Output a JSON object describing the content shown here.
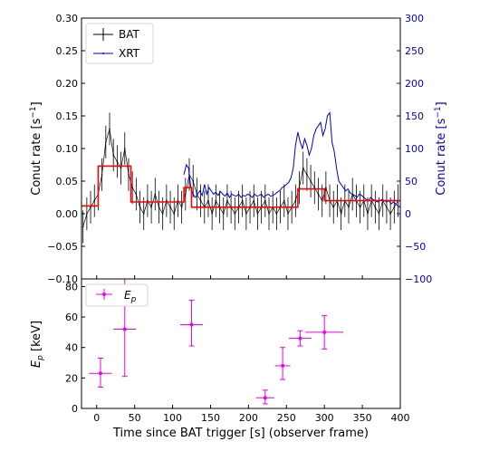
{
  "chart_data": [
    {
      "type": "line",
      "panel": "top",
      "xlabel": "",
      "ylabel_left": "Conut rate [s⁻¹]",
      "ylabel_right": "Conut rate [s⁻¹]",
      "right_axis_color": "#0000cc",
      "xlim": [
        -20,
        400
      ],
      "ylim_left": [
        -0.1,
        0.3
      ],
      "ylim_right": [
        -100,
        300
      ],
      "yticks_left": [
        "−0.10",
        "−0.05",
        "0.00",
        "0.05",
        "0.10",
        "0.15",
        "0.20",
        "0.25",
        "0.30"
      ],
      "yticks_right": [
        "−100",
        "−50",
        "0",
        "50",
        "100",
        "150",
        "200",
        "250",
        "300"
      ],
      "legend": {
        "placement": "top-left",
        "entries": [
          "BAT",
          "XRT"
        ]
      },
      "series": [
        {
          "name": "BAT",
          "color": "#000000",
          "style": "errorbar",
          "x": [
            -18,
            -13,
            -8,
            -3,
            2,
            7,
            12,
            17,
            22,
            27,
            32,
            37,
            42,
            47,
            52,
            57,
            62,
            67,
            72,
            77,
            82,
            87,
            92,
            97,
            102,
            107,
            112,
            117,
            122,
            127,
            132,
            137,
            142,
            147,
            152,
            157,
            162,
            167,
            172,
            177,
            182,
            187,
            192,
            197,
            202,
            207,
            212,
            217,
            222,
            227,
            232,
            237,
            242,
            247,
            252,
            257,
            262,
            267,
            272,
            277,
            282,
            287,
            292,
            297,
            302,
            307,
            312,
            317,
            322,
            327,
            332,
            337,
            342,
            347,
            352,
            357,
            362,
            367,
            372,
            377,
            382,
            387,
            392,
            397
          ],
          "y": [
            -0.02,
            0.0,
            0.01,
            0.02,
            0.03,
            0.06,
            0.11,
            0.13,
            0.09,
            0.08,
            0.07,
            0.1,
            0.06,
            0.04,
            0.03,
            0.01,
            0.0,
            0.02,
            0.01,
            0.03,
            0.01,
            0.0,
            0.02,
            0.01,
            0.0,
            0.02,
            0.01,
            0.03,
            0.06,
            0.05,
            0.03,
            0.02,
            0.01,
            0.02,
            0.0,
            0.02,
            0.01,
            0.0,
            0.02,
            0.01,
            0.0,
            0.01,
            0.02,
            0.0,
            0.01,
            0.02,
            0.0,
            0.01,
            0.02,
            0.0,
            0.01,
            0.0,
            0.01,
            0.02,
            0.0,
            0.01,
            0.02,
            0.04,
            0.07,
            0.06,
            0.05,
            0.04,
            0.03,
            0.02,
            0.04,
            0.02,
            0.01,
            0.02,
            0.0,
            0.02,
            0.01,
            0.03,
            0.02,
            0.01,
            0.02,
            0.0,
            0.02,
            0.01,
            0.0,
            0.02,
            0.01,
            0.0,
            0.01,
            0.02
          ],
          "yerr": 0.025
        },
        {
          "name": "XRT",
          "color": "#0000cc",
          "style": "line",
          "axis": "right",
          "x": [
            115,
            118,
            121,
            124,
            127,
            130,
            133,
            136,
            139,
            142,
            145,
            148,
            151,
            154,
            157,
            160,
            163,
            166,
            169,
            172,
            175,
            178,
            181,
            184,
            187,
            190,
            193,
            196,
            199,
            202,
            205,
            208,
            211,
            214,
            217,
            220,
            223,
            226,
            229,
            232,
            235,
            238,
            241,
            244,
            247,
            250,
            253,
            256,
            259,
            262,
            265,
            268,
            271,
            274,
            277,
            280,
            283,
            286,
            289,
            292,
            295,
            298,
            301,
            304,
            307,
            310,
            313,
            316,
            319,
            322,
            325,
            328,
            331,
            334,
            337,
            340,
            343,
            346,
            349,
            352,
            355,
            358,
            361,
            364,
            367,
            370,
            373,
            376,
            379,
            382,
            385,
            388,
            391,
            394,
            397,
            400
          ],
          "y": [
            60,
            75,
            70,
            40,
            30,
            25,
            30,
            35,
            28,
            45,
            30,
            40,
            35,
            30,
            33,
            28,
            34,
            30,
            27,
            32,
            25,
            30,
            28,
            27,
            30,
            25,
            28,
            27,
            30,
            28,
            25,
            30,
            27,
            28,
            30,
            25,
            28,
            30,
            27,
            28,
            30,
            33,
            35,
            40,
            42,
            45,
            48,
            55,
            70,
            105,
            125,
            110,
            100,
            115,
            105,
            90,
            100,
            120,
            130,
            135,
            140,
            120,
            130,
            150,
            155,
            110,
            95,
            70,
            50,
            45,
            40,
            35,
            38,
            32,
            30,
            28,
            25,
            30,
            28,
            25,
            22,
            20,
            25,
            22,
            20,
            18,
            20,
            22,
            20,
            18,
            20,
            15,
            18,
            15,
            12,
            10
          ]
        },
        {
          "name": "",
          "color": "#ff0000",
          "style": "step",
          "x": [
            -20,
            -5,
            -5,
            2,
            2,
            45,
            45,
            115,
            115,
            125,
            125,
            265,
            265,
            300,
            300,
            400
          ],
          "y": [
            0.012,
            0.012,
            0.012,
            0.012,
            0.073,
            0.073,
            0.018,
            0.018,
            0.04,
            0.04,
            0.01,
            0.01,
            0.038,
            0.038,
            0.02,
            0.02
          ]
        }
      ]
    },
    {
      "type": "scatter",
      "panel": "bottom",
      "xlabel": "Time since BAT trigger [s] (observer frame)",
      "ylabel": "E_p [keV]",
      "xlim": [
        -20,
        400
      ],
      "ylim": [
        0,
        85
      ],
      "xticks": [
        "0",
        "50",
        "100",
        "150",
        "200",
        "250",
        "300",
        "350",
        "400"
      ],
      "yticks": [
        "0",
        "20",
        "40",
        "60",
        "80"
      ],
      "legend": {
        "placement": "top-left",
        "entries": [
          "E_p"
        ]
      },
      "series": [
        {
          "name": "E_p",
          "color": "#ee00ee",
          "points": [
            {
              "x": 5,
              "xerr": 15,
              "y": 23,
              "yerr_lo": 9,
              "yerr_hi": 10
            },
            {
              "x": 37,
              "xerr": 15,
              "y": 52,
              "yerr_lo": 31,
              "yerr_hi": 33
            },
            {
              "x": 125,
              "xerr": 15,
              "y": 55,
              "yerr_lo": 14,
              "yerr_hi": 16
            },
            {
              "x": 222,
              "xerr": 12,
              "y": 7,
              "yerr_lo": 4,
              "yerr_hi": 5
            },
            {
              "x": 245,
              "xerr": 10,
              "y": 28,
              "yerr_lo": 9,
              "yerr_hi": 12
            },
            {
              "x": 268,
              "xerr": 15,
              "y": 46,
              "yerr_lo": 5,
              "yerr_hi": 5
            },
            {
              "x": 300,
              "xerr": 25,
              "y": 50,
              "yerr_lo": 11,
              "yerr_hi": 11
            }
          ]
        }
      ]
    }
  ],
  "labels": {
    "legend_bat": "BAT",
    "legend_xrt": "XRT",
    "legend_ep_main": "E",
    "legend_ep_sub": "p",
    "ylabel_top_left": "Conut rate [s",
    "ylabel_top_right": "Conut rate [s",
    "ylabel_exp": "−1",
    "ylabel_close": "]",
    "ylabel_bottom_main": "E",
    "ylabel_bottom_sub": "p",
    "ylabel_bottom_unit": " [keV]",
    "xlabel": "Time since BAT trigger [s] (observer frame)"
  }
}
